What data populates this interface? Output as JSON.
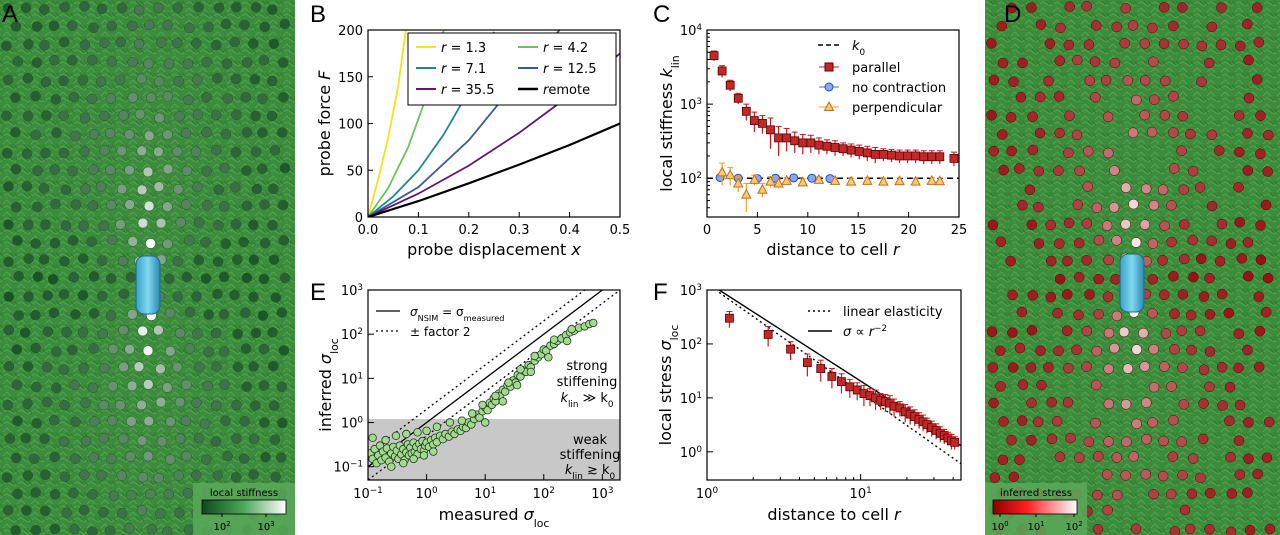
{
  "panels": {
    "A": {
      "letter": "A",
      "colorbar_title": "local stiffness",
      "colorbar_ticks": [
        {
          "base": "10",
          "exp": "2"
        },
        {
          "base": "10",
          "exp": "3"
        }
      ],
      "colormap": [
        "#0d4a1c",
        "#ffffff"
      ],
      "background": "#3e8f3e"
    },
    "D": {
      "letter": "D",
      "colorbar_title": "inferred stress",
      "colorbar_ticks": [
        {
          "base": "10",
          "exp": "0"
        },
        {
          "base": "10",
          "exp": "1"
        },
        {
          "base": "10",
          "exp": "2"
        }
      ],
      "colormap": [
        "#8a0000",
        "#ffffff"
      ],
      "background": "#3e8f3e"
    }
  },
  "chart_data": [
    {
      "id": "B",
      "letter": "B",
      "type": "line",
      "xlabel": "probe displacement",
      "xvar": "x",
      "ylabel": "probe force",
      "yvar": "F",
      "xlim": [
        0,
        0.5
      ],
      "ylim": [
        0,
        200
      ],
      "xticks": [
        0.0,
        0.1,
        0.2,
        0.3,
        0.4,
        0.5
      ],
      "yticks": [
        0,
        50,
        100,
        150,
        200
      ],
      "legend_position": "top-right",
      "series": [
        {
          "name": "r = 1.3",
          "color": "#f5e21b",
          "x": [
            0,
            0.02,
            0.04,
            0.06,
            0.075
          ],
          "y": [
            0,
            40,
            85,
            140,
            200
          ]
        },
        {
          "name": "r = 4.2",
          "color": "#6cc45a",
          "x": [
            0,
            0.04,
            0.08,
            0.12,
            0.15
          ],
          "y": [
            0,
            31,
            75,
            135,
            200
          ]
        },
        {
          "name": "r = 7.1",
          "color": "#1f8a8a",
          "x": [
            0,
            0.05,
            0.1,
            0.15,
            0.2,
            0.25
          ],
          "y": [
            0,
            22,
            50,
            88,
            135,
            198
          ]
        },
        {
          "name": "r = 12.5",
          "color": "#3a5a9a",
          "x": [
            0,
            0.1,
            0.2,
            0.3,
            0.38
          ],
          "y": [
            0,
            32,
            82,
            148,
            200
          ]
        },
        {
          "name": "r = 35.5",
          "color": "#5a1a6e",
          "x": [
            0,
            0.1,
            0.2,
            0.3,
            0.4,
            0.5
          ],
          "y": [
            0,
            25,
            55,
            90,
            130,
            175
          ]
        },
        {
          "name": "remote",
          "color": "#000000",
          "x": [
            0,
            0.1,
            0.2,
            0.3,
            0.4,
            0.5
          ],
          "y": [
            0,
            17,
            36,
            56,
            77,
            100
          ]
        }
      ]
    },
    {
      "id": "C",
      "letter": "C",
      "type": "scatter",
      "xlabel": "distance to cell",
      "xvar": "r",
      "ylabel": "local stiffness",
      "yvar_sub": "lin",
      "yscale": "log",
      "xlim": [
        0,
        25
      ],
      "ylim": [
        30,
        10000
      ],
      "xticks": [
        0,
        5,
        10,
        15,
        20,
        25
      ],
      "yticks": [
        {
          "base": "10",
          "exp": "2",
          "v": 100
        },
        {
          "base": "10",
          "exp": "3",
          "v": 1000
        },
        {
          "base": "10",
          "exp": "4",
          "v": 10000
        }
      ],
      "legend_position": "top-right",
      "reference": {
        "name": "k",
        "sub": "0",
        "value": 100
      },
      "series": [
        {
          "name": "parallel",
          "color": "#c41a1a",
          "marker": "square",
          "x": [
            0.7,
            1.5,
            2.3,
            3.1,
            3.9,
            4.7,
            5.5,
            6.3,
            7.1,
            7.9,
            8.7,
            9.5,
            10.3,
            11.1,
            11.9,
            12.7,
            13.5,
            14.3,
            15.1,
            15.9,
            16.7,
            17.5,
            18.3,
            19.1,
            19.9,
            20.7,
            21.5,
            22.3,
            23.1,
            24.5
          ],
          "y": [
            4500,
            2800,
            1800,
            1200,
            800,
            600,
            550,
            450,
            350,
            350,
            320,
            300,
            300,
            280,
            270,
            260,
            250,
            240,
            230,
            220,
            210,
            210,
            205,
            200,
            200,
            200,
            195,
            195,
            195,
            185
          ],
          "err": [
            700,
            500,
            300,
            200,
            200,
            180,
            150,
            200,
            150,
            120,
            100,
            90,
            80,
            70,
            60,
            60,
            50,
            50,
            50,
            50,
            50,
            40,
            40,
            40,
            40,
            40,
            40,
            40,
            40,
            40
          ]
        },
        {
          "name": "no contraction",
          "color": "#4a6fd8",
          "marker": "circle",
          "x": [
            1.3,
            3.1,
            5.0,
            6.8,
            8.6,
            10.4,
            12.2
          ],
          "y": [
            102,
            100,
            99,
            100,
            101,
            100,
            99
          ],
          "err": [
            8,
            8,
            8,
            8,
            8,
            8,
            8
          ]
        },
        {
          "name": "perpendicular",
          "color": "#f0a030",
          "marker": "triangle",
          "x": [
            1.5,
            2.3,
            3.1,
            3.9,
            4.7,
            5.5,
            6.3,
            7.1,
            7.9,
            9.5,
            11.1,
            12.7,
            14.3,
            15.9,
            17.5,
            19.1,
            20.7,
            22.3,
            23.1
          ],
          "y": [
            120,
            110,
            85,
            60,
            95,
            70,
            90,
            85,
            92,
            88,
            95,
            92,
            90,
            92,
            90,
            91,
            90,
            92,
            91
          ],
          "err": [
            40,
            30,
            20,
            25,
            15,
            15,
            15,
            12,
            10,
            10,
            10,
            10,
            10,
            10,
            10,
            10,
            10,
            10,
            10
          ]
        }
      ]
    },
    {
      "id": "E",
      "letter": "E",
      "type": "scatter",
      "xlabel": "measured",
      "ylabel": "inferred",
      "var": "σ",
      "var_sub": "loc",
      "xscale": "log",
      "yscale": "log",
      "xlim": [
        0.1,
        2000
      ],
      "ylim": [
        0.05,
        1000
      ],
      "xticks": [
        {
          "base": "10",
          "exp": "−1",
          "v": 0.1
        },
        {
          "base": "10",
          "exp": "0",
          "v": 1
        },
        {
          "base": "10",
          "exp": "1",
          "v": 10
        },
        {
          "base": "10",
          "exp": "2",
          "v": 100
        },
        {
          "base": "10",
          "exp": "3",
          "v": 1000
        }
      ],
      "yticks": [
        {
          "base": "10",
          "exp": "−1",
          "v": 0.1
        },
        {
          "base": "10",
          "exp": "0",
          "v": 1
        },
        {
          "base": "10",
          "exp": "1",
          "v": 10
        },
        {
          "base": "10",
          "exp": "2",
          "v": 100
        },
        {
          "base": "10",
          "exp": "3",
          "v": 1000
        }
      ],
      "legend_position": "top-left",
      "legend": [
        {
          "style": "solid",
          "name_main": "σ",
          "name_sub": "NSIM",
          "eq_main": " = σ",
          "eq_sub": "measured"
        },
        {
          "style": "dotted",
          "label": "± factor 2"
        }
      ],
      "shaded_region": {
        "ymax": 1.2
      },
      "annotations": {
        "strong": {
          "line1": "strong",
          "line2": "stiffening",
          "expr_main": "k",
          "expr_sub": "lin",
          "expr_rest": " ≫ k",
          "expr_sub2": "0"
        },
        "weak": {
          "line1": "weak",
          "line2": "stiffening",
          "expr_main": "k",
          "expr_sub": "lin",
          "expr_rest": " ≳ k",
          "expr_sub2": "0"
        }
      },
      "point_fill": "#a5d890",
      "point_edge": "#1d3d1d",
      "points": [
        [
          0.11,
          0.2
        ],
        [
          0.12,
          0.15
        ],
        [
          0.13,
          0.25
        ],
        [
          0.14,
          0.12
        ],
        [
          0.15,
          0.18
        ],
        [
          0.16,
          0.3
        ],
        [
          0.17,
          0.14
        ],
        [
          0.18,
          0.22
        ],
        [
          0.2,
          0.16
        ],
        [
          0.21,
          0.26
        ],
        [
          0.23,
          0.13
        ],
        [
          0.25,
          0.2
        ],
        [
          0.27,
          0.28
        ],
        [
          0.29,
          0.17
        ],
        [
          0.31,
          0.23
        ],
        [
          0.33,
          0.15
        ],
        [
          0.35,
          0.3
        ],
        [
          0.37,
          0.19
        ],
        [
          0.4,
          0.25
        ],
        [
          0.42,
          0.14
        ],
        [
          0.45,
          0.21
        ],
        [
          0.48,
          0.32
        ],
        [
          0.5,
          0.18
        ],
        [
          0.53,
          0.27
        ],
        [
          0.56,
          0.2
        ],
        [
          0.6,
          0.35
        ],
        [
          0.63,
          0.22
        ],
        [
          0.67,
          0.28
        ],
        [
          0.7,
          0.19
        ],
        [
          0.75,
          0.33
        ],
        [
          0.8,
          0.25
        ],
        [
          0.85,
          0.38
        ],
        [
          0.9,
          0.23
        ],
        [
          0.95,
          0.3
        ],
        [
          1.0,
          0.35
        ],
        [
          1.1,
          0.28
        ],
        [
          1.2,
          0.4
        ],
        [
          1.3,
          0.32
        ],
        [
          1.4,
          0.45
        ],
        [
          1.5,
          0.36
        ],
        [
          1.7,
          0.5
        ],
        [
          1.9,
          0.42
        ],
        [
          2.1,
          0.55
        ],
        [
          2.4,
          0.48
        ],
        [
          2.7,
          0.62
        ],
        [
          3.0,
          0.55
        ],
        [
          3.4,
          0.7
        ],
        [
          3.8,
          0.65
        ],
        [
          4.2,
          0.8
        ],
        [
          4.7,
          0.75
        ],
        [
          5.2,
          1.0
        ],
        [
          5.8,
          0.9
        ],
        [
          6.5,
          1.2
        ],
        [
          7.2,
          1.5
        ],
        [
          8.0,
          1.3
        ],
        [
          9.0,
          1.8
        ],
        [
          10,
          2.2
        ],
        [
          11,
          1.9
        ],
        [
          12,
          2.8
        ],
        [
          13,
          2.5
        ],
        [
          14,
          3.5
        ],
        [
          15,
          3.0
        ],
        [
          17,
          4.5
        ],
        [
          18,
          4.0
        ],
        [
          20,
          5.5
        ],
        [
          22,
          5.0
        ],
        [
          24,
          7.0
        ],
        [
          27,
          6.5
        ],
        [
          30,
          9.0
        ],
        [
          33,
          8.0
        ],
        [
          36,
          12
        ],
        [
          40,
          11
        ],
        [
          45,
          15
        ],
        [
          50,
          14
        ],
        [
          55,
          20
        ],
        [
          60,
          18
        ],
        [
          70,
          25
        ],
        [
          80,
          30
        ],
        [
          90,
          35
        ],
        [
          100,
          45
        ],
        [
          110,
          42
        ],
        [
          130,
          55
        ],
        [
          150,
          60
        ],
        [
          170,
          70
        ],
        [
          200,
          80
        ],
        [
          240,
          95
        ],
        [
          280,
          110
        ],
        [
          330,
          120
        ],
        [
          400,
          140
        ],
        [
          500,
          150
        ],
        [
          600,
          170
        ],
        [
          700,
          180
        ],
        [
          0.12,
          0.45
        ],
        [
          0.2,
          0.4
        ],
        [
          0.3,
          0.5
        ],
        [
          0.45,
          0.55
        ],
        [
          0.7,
          0.6
        ],
        [
          1.0,
          0.65
        ],
        [
          1.5,
          0.8
        ],
        [
          2.5,
          1.0
        ],
        [
          4.0,
          1.1
        ],
        [
          6.0,
          1.6
        ],
        [
          9.0,
          2.5
        ],
        [
          15,
          4.0
        ],
        [
          25,
          8.0
        ],
        [
          40,
          16
        ],
        [
          70,
          32
        ],
        [
          150,
          75
        ],
        [
          300,
          130
        ],
        [
          10,
          1.0
        ],
        [
          20,
          3.0
        ],
        [
          35,
          7.0
        ],
        [
          60,
          14
        ],
        [
          120,
          30
        ],
        [
          250,
          70
        ],
        [
          0.25,
          0.1
        ],
        [
          0.4,
          0.12
        ],
        [
          0.6,
          0.15
        ],
        [
          0.9,
          0.18
        ],
        [
          1.3,
          0.22
        ]
      ]
    },
    {
      "id": "F",
      "letter": "F",
      "type": "scatter",
      "xlabel": "distance to cell",
      "xvar": "r",
      "ylabel": "local stress",
      "var": "σ",
      "var_sub": "loc",
      "xscale": "log",
      "yscale": "log",
      "xlim": [
        1,
        45
      ],
      "ylim": [
        0.3,
        1000
      ],
      "xticks": [
        {
          "base": "10",
          "exp": "0",
          "v": 1
        },
        {
          "base": "10",
          "exp": "1",
          "v": 10
        }
      ],
      "yticks": [
        {
          "base": "10",
          "exp": "0",
          "v": 1
        },
        {
          "base": "10",
          "exp": "1",
          "v": 10
        },
        {
          "base": "10",
          "exp": "2",
          "v": 100
        },
        {
          "base": "10",
          "exp": "3",
          "v": 1000
        }
      ],
      "legend_position": "top-right",
      "legend": [
        {
          "style": "dotted",
          "label": "linear elasticity"
        },
        {
          "style": "solid",
          "label_main": "σ ∝ r",
          "label_sup": "−2"
        }
      ],
      "color": "#c41a1a",
      "lines": {
        "dotted": {
          "x": [
            1.2,
            45
          ],
          "y": [
            900,
            0.6
          ]
        },
        "solid": {
          "x": [
            1.2,
            45
          ],
          "y": [
            1000,
            1.3
          ]
        }
      },
      "x": [
        1.4,
        2.5,
        3.5,
        4.5,
        5.5,
        6.5,
        7.5,
        8.5,
        9.5,
        10.5,
        11.5,
        12.5,
        13.5,
        14.5,
        15.5,
        16.5,
        18,
        19.5,
        21,
        22.5,
        24,
        25.5,
        27,
        29,
        31,
        33,
        35,
        37,
        39,
        41
      ],
      "y": [
        300,
        150,
        80,
        45,
        35,
        25,
        20,
        16,
        14,
        12,
        11,
        10,
        9,
        8.5,
        8,
        7,
        6.5,
        5.5,
        5,
        4.5,
        4,
        3.6,
        3.2,
        2.8,
        2.5,
        2.2,
        2.0,
        1.8,
        1.6,
        1.5
      ],
      "err": [
        100,
        60,
        30,
        20,
        15,
        10,
        8,
        6,
        5,
        5,
        4,
        4,
        3,
        3,
        3,
        2.5,
        2,
        2,
        1.8,
        1.5,
        1.3,
        1.2,
        1,
        0.9,
        0.8,
        0.7,
        0.6,
        0.5,
        0.5,
        0.4
      ]
    }
  ]
}
